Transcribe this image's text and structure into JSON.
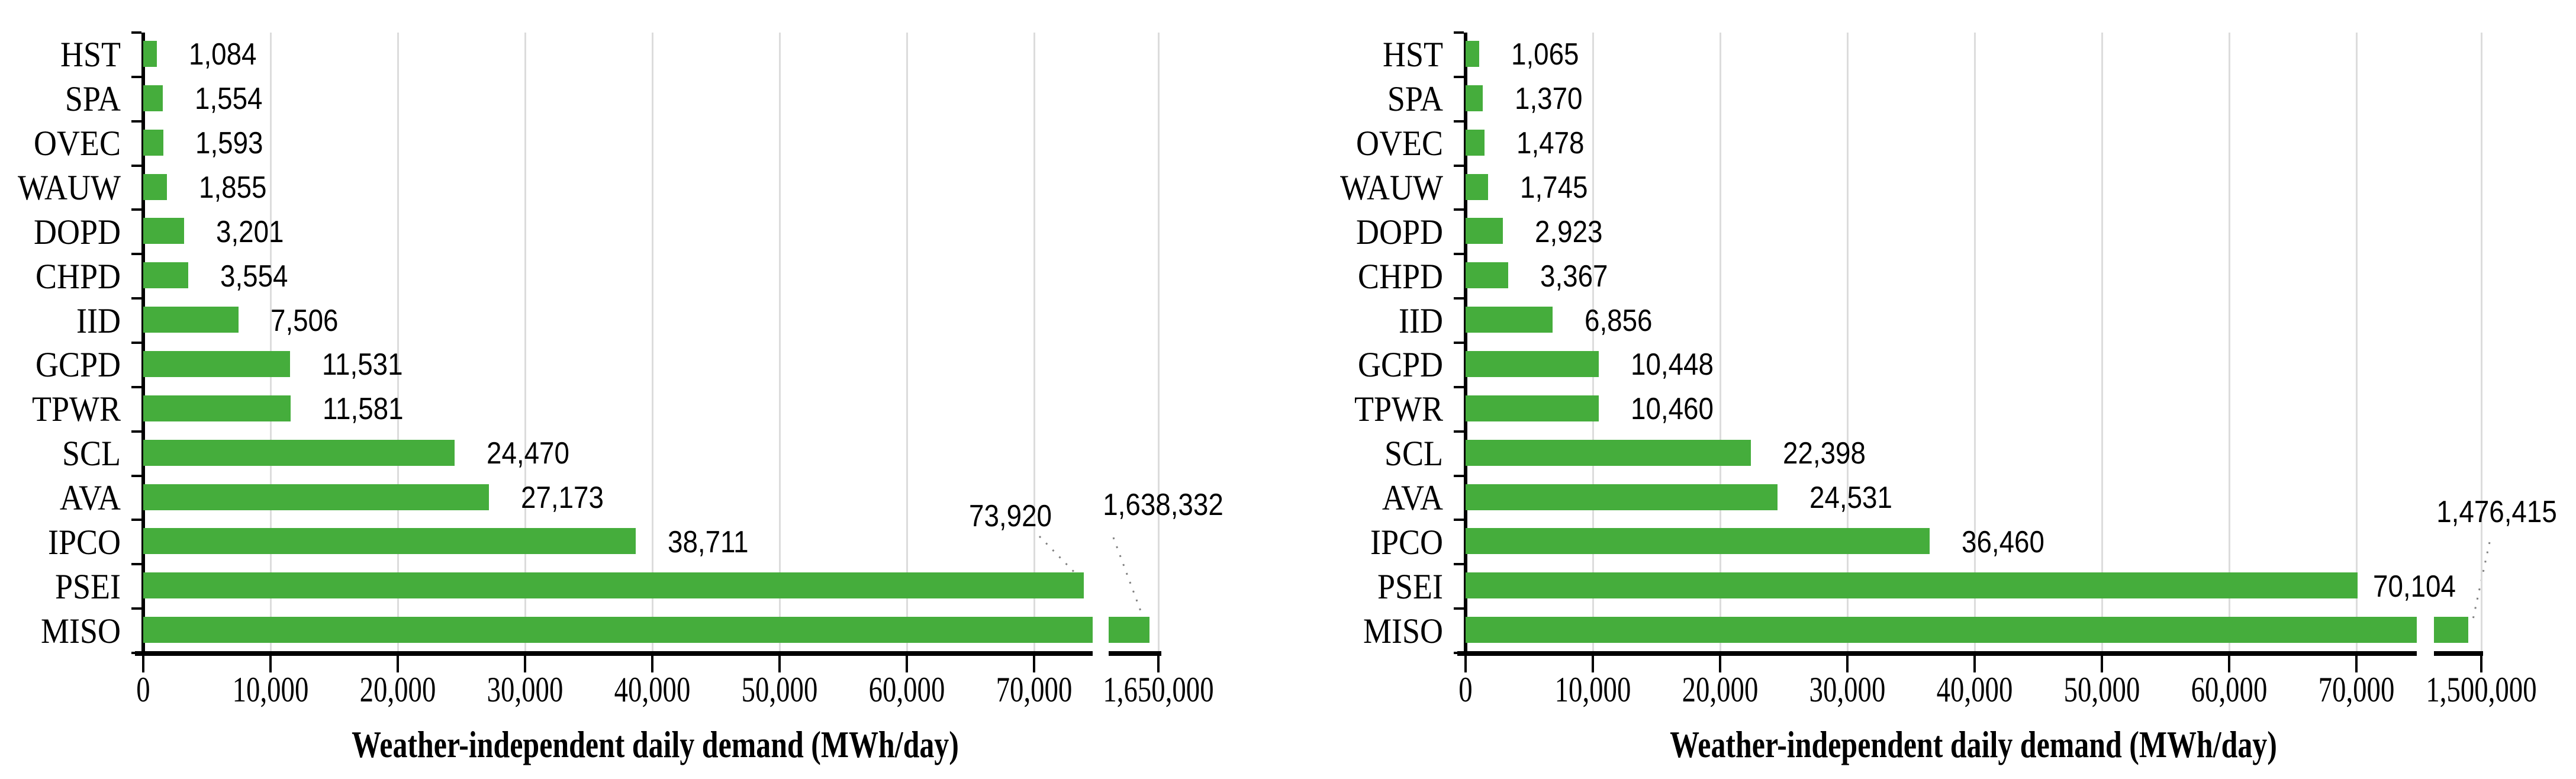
{
  "page": {
    "kind": "figure with two horizontal bar charts, broken x-axes",
    "background": "#ffffff"
  },
  "colors": {
    "bar_green": "#45ad3c",
    "gridline": "#dcdcdc",
    "axis": "#000000",
    "leader_dots": "#808080",
    "text": "#000000"
  },
  "chart_data": [
    {
      "type": "bar",
      "orientation": "horizontal",
      "title": "",
      "xlabel": "Weather-independent daily demand (MWh/day)",
      "ylabel": "",
      "grid": true,
      "axis_break": true,
      "xlim_main": [
        0,
        74600
      ],
      "categories": [
        "HST",
        "SPA",
        "OVEC",
        "WAUW",
        "DOPD",
        "CHPD",
        "IID",
        "GCPD",
        "TPWR",
        "SCL",
        "AVA",
        "IPCO",
        "PSEI",
        "MISO"
      ],
      "values": [
        1084,
        1554,
        1593,
        1855,
        3201,
        3554,
        7506,
        11531,
        11581,
        24470,
        27173,
        38711,
        73920,
        1638332
      ],
      "value_labels": [
        "1,084",
        "1,554",
        "1,593",
        "1,855",
        "3,201",
        "3,554",
        "7,506",
        "11,531",
        "11,581",
        "24,470",
        "27,173",
        "38,711",
        "73,920",
        "1,638,332"
      ],
      "x_tick_labels": [
        "0",
        "10,000",
        "20,000",
        "30,000",
        "40,000",
        "50,000",
        "60,000",
        "70,000"
      ],
      "broken_axis_tick_label": "1,650,000",
      "broken_axis_tick_value": 1650000,
      "callout_categories": [
        "PSEI",
        "MISO"
      ]
    },
    {
      "type": "bar",
      "orientation": "horizontal",
      "title": "",
      "xlabel": "Weather-independent daily demand (MWh/day)",
      "ylabel": "",
      "grid": true,
      "axis_break": true,
      "xlim_main": [
        0,
        74800
      ],
      "categories": [
        "HST",
        "SPA",
        "OVEC",
        "WAUW",
        "DOPD",
        "CHPD",
        "IID",
        "GCPD",
        "TPWR",
        "SCL",
        "AVA",
        "IPCO",
        "PSEI",
        "MISO"
      ],
      "values": [
        1065,
        1370,
        1478,
        1745,
        2923,
        3367,
        6856,
        10448,
        10460,
        22398,
        24531,
        36460,
        70104,
        1476415
      ],
      "value_labels": [
        "1,065",
        "1,370",
        "1,478",
        "1,745",
        "2,923",
        "3,367",
        "6,856",
        "10,448",
        "10,460",
        "22,398",
        "24,531",
        "36,460",
        "70,104",
        "1,476,415"
      ],
      "x_tick_labels": [
        "0",
        "10,000",
        "20,000",
        "30,000",
        "40,000",
        "50,000",
        "60,000",
        "70,000"
      ],
      "broken_axis_tick_label": "1,500,000",
      "broken_axis_tick_value": 1500000,
      "callout_categories": [
        "MISO"
      ]
    }
  ]
}
